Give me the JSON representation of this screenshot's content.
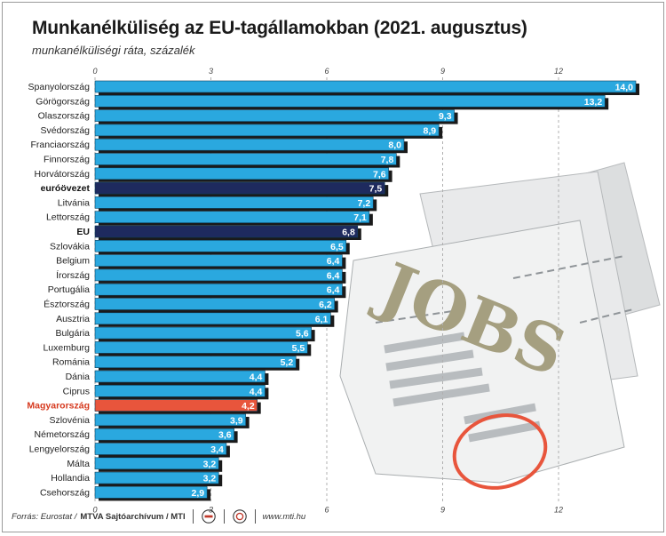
{
  "header": {
    "title": "Munkanélküliség az EU-tagállamokban (2021. augusztus)",
    "subtitle": "munkanélküliségi ráta, százalék"
  },
  "footer": {
    "source_label": "Forrás: Eurostat /",
    "agency": "MTVA Sajtóarchívum / MTI",
    "website": "www.mti.hu"
  },
  "illustration": {
    "newspaper_headline": "JOBS"
  },
  "chart_data": {
    "type": "bar",
    "orientation": "horizontal",
    "title": "Munkanélküliség az EU-tagállamokban (2021. augusztus)",
    "subtitle": "munkanélküliségi ráta, százalék",
    "categories": [
      "Spanyolország",
      "Görögország",
      "Olaszország",
      "Svédország",
      "Franciaország",
      "Finnország",
      "Horvátország",
      "euróövezet",
      "Litvánia",
      "Lettország",
      "EU",
      "Szlovákia",
      "Belgium",
      "Írország",
      "Portugália",
      "Észtország",
      "Ausztria",
      "Bulgária",
      "Luxemburg",
      "Románia",
      "Dánia",
      "Ciprus",
      "Magyarország",
      "Szlovénia",
      "Németország",
      "Lengyelország",
      "Málta",
      "Hollandia",
      "Csehország"
    ],
    "values": [
      14.0,
      13.2,
      9.3,
      8.9,
      8.0,
      7.8,
      7.6,
      7.5,
      7.2,
      7.1,
      6.8,
      6.5,
      6.4,
      6.4,
      6.4,
      6.2,
      6.1,
      5.6,
      5.5,
      5.2,
      4.4,
      4.4,
      4.2,
      3.9,
      3.6,
      3.4,
      3.2,
      3.2,
      2.9
    ],
    "value_labels": [
      "14,0",
      "13,2",
      "9,3",
      "8,9",
      "8,0",
      "7,8",
      "7,6",
      "7,5",
      "7,2",
      "7,1",
      "6,8",
      "6,5",
      "6,4",
      "6,4",
      "6,4",
      "6,2",
      "6,1",
      "5,6",
      "5,5",
      "5,2",
      "4,4",
      "4,4",
      "4,2",
      "3,9",
      "3,6",
      "3,4",
      "3,2",
      "3,2",
      "2,9"
    ],
    "highlight": {
      "euróövezet": "aggregate",
      "EU": "aggregate",
      "Magyarország": "hungary"
    },
    "xlim": [
      0,
      14
    ],
    "xticks": [
      0,
      3,
      6,
      9,
      12
    ],
    "grid": true,
    "legend": "none",
    "colors": {
      "default": "#2aa8df",
      "aggregate": "#1e2a5e",
      "hungary": "#e8553c",
      "shadow": "#1a1a1a",
      "grid": "#b0b0b0"
    }
  }
}
